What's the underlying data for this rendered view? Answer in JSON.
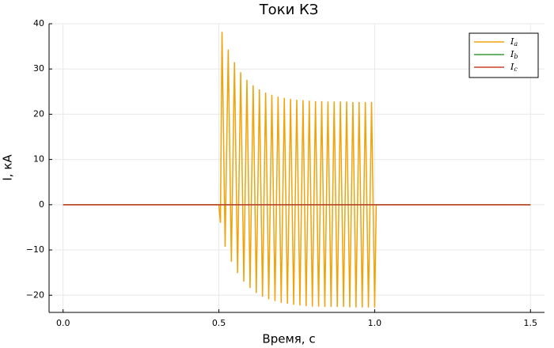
{
  "chart_data": {
    "type": "line",
    "title": "Токи КЗ",
    "xlabel": "Время, с",
    "ylabel": "I, кА",
    "xlim": [
      -0.045,
      1.545
    ],
    "ylim": [
      -23.8,
      40
    ],
    "xticks": [
      {
        "value": 0,
        "label": "0.0"
      },
      0.5,
      {
        "value": 1,
        "label": "1.0"
      },
      1.5
    ],
    "yticks": [
      {
        "value": -20,
        "label": "−20"
      },
      {
        "value": -10,
        "label": "−10"
      },
      0,
      10,
      20,
      30,
      40
    ],
    "grid": true,
    "legend": "top-right",
    "series": [
      {
        "name": "Ia",
        "color": "#f0a30a",
        "x": [
          0,
          0.5,
          0.505,
          0.51,
          0.52,
          0.53,
          0.54,
          0.55,
          0.56,
          0.57,
          0.58,
          0.59,
          0.6,
          0.61,
          0.62,
          0.63,
          0.64,
          0.65,
          0.66,
          0.67,
          0.68,
          0.69,
          0.7,
          0.71,
          0.72,
          0.73,
          0.74,
          0.75,
          0.76,
          0.77,
          0.78,
          0.79,
          0.8,
          0.81,
          0.82,
          0.83,
          0.84,
          0.85,
          0.86,
          0.87,
          0.88,
          0.89,
          0.9,
          0.91,
          0.92,
          0.93,
          0.94,
          0.95,
          0.96,
          0.97,
          0.98,
          0.99,
          1.0,
          1.005,
          1.5
        ],
        "values": [
          0,
          0,
          -4,
          38.2,
          -9.3,
          34.3,
          -12.6,
          31.5,
          -15.1,
          29.3,
          -17.0,
          27.6,
          -18.4,
          26.4,
          -19.5,
          25.5,
          -20.3,
          24.8,
          -20.9,
          24.3,
          -21.3,
          23.9,
          -21.7,
          23.6,
          -21.9,
          23.4,
          -22.1,
          23.2,
          -22.3,
          23.1,
          -22.4,
          23.0,
          -22.5,
          22.9,
          -22.5,
          22.9,
          -22.6,
          22.8,
          -22.6,
          22.8,
          -22.6,
          22.8,
          -22.6,
          22.8,
          -22.7,
          22.7,
          -22.7,
          22.7,
          -22.7,
          22.7,
          -22.7,
          22.7,
          -22.7,
          0,
          0
        ]
      },
      {
        "name": "Ib",
        "color": "#3a9a3a",
        "x": [
          0,
          1.5
        ],
        "values": [
          0,
          0
        ]
      },
      {
        "name": "Ic",
        "color": "#c8402a",
        "x": [
          0,
          1.5
        ],
        "values": [
          0,
          0
        ]
      }
    ]
  }
}
